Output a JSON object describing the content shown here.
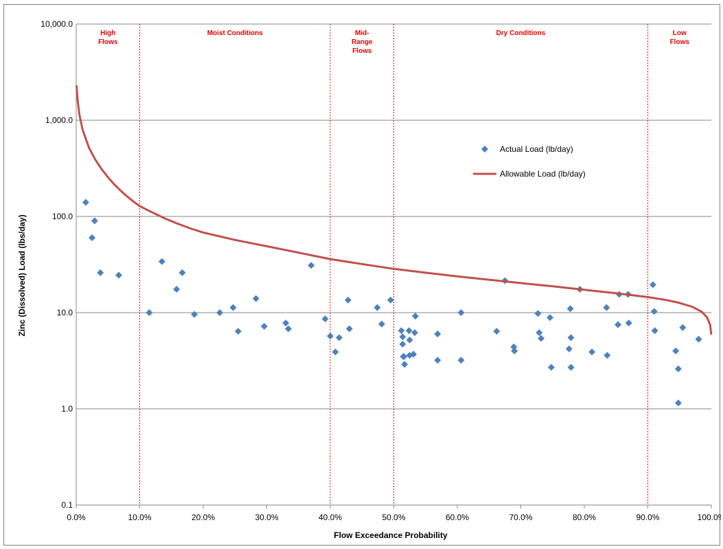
{
  "chart_data": {
    "type": "scatter",
    "title": "",
    "xlabel": "Flow Exceedance Probability",
    "ylabel": "Zinc (Dissolved) Load (lbs/day)",
    "xlim": [
      0,
      100
    ],
    "ylim": [
      0.1,
      10000
    ],
    "yscale": "log",
    "x_ticks": [
      0,
      10,
      20,
      30,
      40,
      50,
      60,
      70,
      80,
      90,
      100
    ],
    "x_tick_labels": [
      "0.0%",
      "10.0%",
      "20.0%",
      "30.0%",
      "40.0%",
      "50.0%",
      "60.0%",
      "70.0%",
      "80.0%",
      "90.0%",
      "100.0%"
    ],
    "y_ticks": [
      0.1,
      1,
      10,
      100,
      1000,
      10000
    ],
    "y_tick_labels": [
      "0.1",
      "1.0",
      "10.0",
      "100.0",
      "1,000.0",
      "10,000.0"
    ],
    "grid": "horizontal",
    "legend_position": "right",
    "zones": [
      {
        "lines": [
          "High",
          "Flows"
        ],
        "from": 0,
        "to": 10
      },
      {
        "lines": [
          "Moist Conditions"
        ],
        "from": 10,
        "to": 40
      },
      {
        "lines": [
          "Mid-",
          "Range",
          "Flows"
        ],
        "from": 40,
        "to": 50
      },
      {
        "lines": [
          "Dry Conditions"
        ],
        "from": 50,
        "to": 90
      },
      {
        "lines": [
          "Low",
          "Flows"
        ],
        "from": 90,
        "to": 100
      }
    ],
    "zone_boundaries": [
      10,
      40,
      50,
      90
    ],
    "series": [
      {
        "name": "Actual Load (lb/day)",
        "kind": "scatter",
        "color": "#4f81bd",
        "marker": "diamond",
        "points": [
          [
            1.5,
            140
          ],
          [
            2.5,
            60
          ],
          [
            2.9,
            90
          ],
          [
            3.8,
            26
          ],
          [
            6.7,
            24.5
          ],
          [
            11.5,
            10
          ],
          [
            13.5,
            34
          ],
          [
            15.8,
            17.5
          ],
          [
            16.7,
            26
          ],
          [
            18.6,
            9.6
          ],
          [
            22.6,
            10
          ],
          [
            24.7,
            11.3
          ],
          [
            25.5,
            6.4
          ],
          [
            28.3,
            14
          ],
          [
            29.6,
            7.2
          ],
          [
            33.0,
            7.8
          ],
          [
            33.4,
            6.8
          ],
          [
            37.0,
            31
          ],
          [
            39.2,
            8.6
          ],
          [
            40.0,
            5.7
          ],
          [
            40.8,
            3.9
          ],
          [
            41.4,
            5.5
          ],
          [
            42.8,
            13.5
          ],
          [
            43.0,
            6.8
          ],
          [
            47.4,
            11.3
          ],
          [
            48.1,
            7.6
          ],
          [
            49.5,
            13.5
          ],
          [
            51.2,
            6.5
          ],
          [
            51.4,
            5.6
          ],
          [
            51.4,
            4.7
          ],
          [
            51.5,
            3.5
          ],
          [
            51.6,
            3.5
          ],
          [
            51.7,
            2.9
          ],
          [
            52.4,
            6.5
          ],
          [
            52.5,
            5.2
          ],
          [
            52.5,
            3.6
          ],
          [
            53.1,
            3.7
          ],
          [
            53.3,
            6.2
          ],
          [
            53.4,
            9.2
          ],
          [
            56.9,
            6.0
          ],
          [
            56.9,
            3.2
          ],
          [
            60.6,
            10.0
          ],
          [
            60.6,
            3.2
          ],
          [
            66.2,
            6.4
          ],
          [
            67.5,
            21.5
          ],
          [
            68.9,
            4.4
          ],
          [
            69.0,
            4.0
          ],
          [
            72.7,
            9.8
          ],
          [
            72.9,
            6.2
          ],
          [
            73.2,
            5.4
          ],
          [
            74.6,
            8.9
          ],
          [
            74.8,
            2.7
          ],
          [
            77.6,
            4.2
          ],
          [
            77.8,
            11.0
          ],
          [
            77.9,
            5.5
          ],
          [
            77.9,
            2.7
          ],
          [
            79.3,
            17.5
          ],
          [
            81.2,
            3.9
          ],
          [
            83.5,
            11.3
          ],
          [
            83.6,
            3.6
          ],
          [
            85.3,
            7.5
          ],
          [
            85.5,
            15.5
          ],
          [
            86.9,
            15.5
          ],
          [
            87.0,
            7.8
          ],
          [
            90.8,
            19.5
          ],
          [
            91.0,
            10.3
          ],
          [
            91.1,
            6.5
          ],
          [
            94.4,
            4.0
          ],
          [
            94.8,
            2.6
          ],
          [
            94.8,
            1.15
          ],
          [
            95.5,
            7.0
          ],
          [
            98.0,
            5.3
          ]
        ]
      },
      {
        "name": "Allowable Load (lb/day)",
        "kind": "line",
        "color": "#c0504d",
        "points": [
          [
            0.05,
            2300
          ],
          [
            0.2,
            1700
          ],
          [
            0.5,
            1150
          ],
          [
            1,
            800
          ],
          [
            2,
            520
          ],
          [
            3,
            390
          ],
          [
            4,
            310
          ],
          [
            5,
            255
          ],
          [
            6,
            215
          ],
          [
            7,
            185
          ],
          [
            8,
            162
          ],
          [
            9,
            143
          ],
          [
            10,
            128
          ],
          [
            12,
            110
          ],
          [
            14,
            95
          ],
          [
            16,
            84
          ],
          [
            18,
            75
          ],
          [
            20,
            68
          ],
          [
            25,
            57
          ],
          [
            30,
            49
          ],
          [
            35,
            42
          ],
          [
            40,
            36
          ],
          [
            45,
            32
          ],
          [
            50,
            28.5
          ],
          [
            55,
            26
          ],
          [
            60,
            23.8
          ],
          [
            65,
            22
          ],
          [
            70,
            20.3
          ],
          [
            75,
            18.8
          ],
          [
            80,
            17.3
          ],
          [
            85,
            15.9
          ],
          [
            90,
            14.5
          ],
          [
            93,
            13.5
          ],
          [
            95,
            12.6
          ],
          [
            97,
            11.5
          ],
          [
            98.5,
            10.2
          ],
          [
            99.3,
            9.0
          ],
          [
            99.8,
            7.5
          ],
          [
            100,
            5.9
          ]
        ]
      }
    ]
  }
}
